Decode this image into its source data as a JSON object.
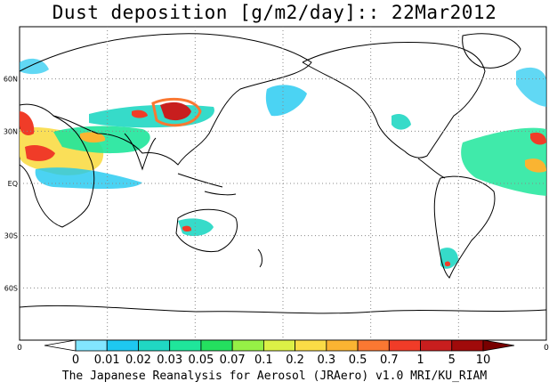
{
  "title": "Dust deposition [g/m2/day]:: 22Mar2012",
  "footer": "The Japanese Reanalysis for Aerosol (JRAero) v1.0 MRI/KU_RIAM",
  "map": {
    "lat_labels": [
      {
        "lat": 60,
        "text": "60N"
      },
      {
        "lat": 30,
        "text": "30N"
      },
      {
        "lat": 0,
        "text": "EQ"
      },
      {
        "lat": -30,
        "text": "30S"
      },
      {
        "lat": -60,
        "text": "60S"
      }
    ],
    "lat_range": [
      -90,
      90
    ],
    "lon_range": [
      0,
      360
    ],
    "grid": "dotted"
  },
  "colorbar": {
    "labels": [
      "0",
      "0.01",
      "0.02",
      "0.03",
      "0.05",
      "0.07",
      "0.1",
      "0.2",
      "0.3",
      "0.5",
      "0.7",
      "1",
      "5",
      "10"
    ],
    "colors": [
      "#ffffff",
      "#82e6ff",
      "#1ec8f0",
      "#20d7c3",
      "#1fe69b",
      "#24e05f",
      "#96f046",
      "#dcf046",
      "#fadc46",
      "#fab432",
      "#fa7832",
      "#f03c28",
      "#c81e1e",
      "#a00a0a",
      "#780000"
    ],
    "left_value": "0",
    "right_value": "0"
  }
}
